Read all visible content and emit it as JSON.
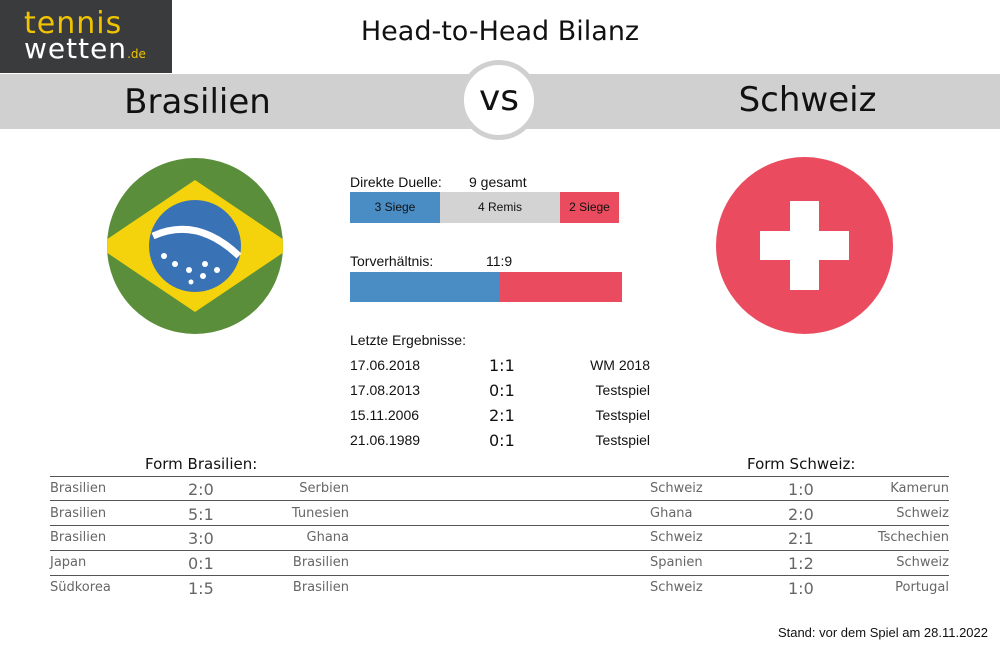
{
  "logo": {
    "line1": "tennis",
    "line2": "wetten",
    "line2_suffix": ".de"
  },
  "title": "Head-to-Head Bilanz",
  "vs": "vs",
  "team_left": "Brasilien",
  "team_right": "Schweiz",
  "colors": {
    "left": "#4a8cc4",
    "draw": "#d3d3d3",
    "right": "#ea4b5e",
    "band": "#d0d0d0",
    "brazil_green": "#5a8e3a",
    "brazil_yellow": "#f4d20c",
    "brazil_blue": "#3a73b5"
  },
  "duels": {
    "label": "Direkte Duelle:",
    "total": "9 gesamt",
    "segments": [
      {
        "label": "3 Siege",
        "count": 3,
        "color": "#4a8cc4",
        "text_color": "#111111"
      },
      {
        "label": "4 Remis",
        "count": 4,
        "color": "#d3d3d3",
        "text_color": "#111111"
      },
      {
        "label": "2 Siege",
        "count": 2,
        "color": "#ea4b5e",
        "text_color": "#111111"
      }
    ]
  },
  "goals": {
    "label": "Torverhältnis:",
    "ratio": "11:9",
    "left_goals": 11,
    "right_goals": 9
  },
  "last_results": {
    "label": "Letzte Ergebnisse:",
    "rows": [
      {
        "date": "17.06.2018",
        "score": "1:1",
        "type": "WM 2018"
      },
      {
        "date": "17.08.2013",
        "score": "0:1",
        "type": "Testspiel"
      },
      {
        "date": "15.11.2006",
        "score": "2:1",
        "type": "Testspiel"
      },
      {
        "date": "21.06.1989",
        "score": "0:1",
        "type": "Testspiel"
      }
    ]
  },
  "form_left": {
    "title": "Form Brasilien:",
    "rows": [
      {
        "home": "Brasilien",
        "score": "2:0",
        "away": "Serbien"
      },
      {
        "home": "Brasilien",
        "score": "5:1",
        "away": "Tunesien"
      },
      {
        "home": "Brasilien",
        "score": "3:0",
        "away": "Ghana"
      },
      {
        "home": "Japan",
        "score": "0:1",
        "away": "Brasilien"
      },
      {
        "home": "Südkorea",
        "score": "1:5",
        "away": "Brasilien"
      }
    ]
  },
  "form_right": {
    "title": "Form Schweiz:",
    "rows": [
      {
        "home": "Schweiz",
        "score": "1:0",
        "away": "Kamerun"
      },
      {
        "home": "Ghana",
        "score": "2:0",
        "away": "Schweiz"
      },
      {
        "home": "Schweiz",
        "score": "2:1",
        "away": "Tschechien"
      },
      {
        "home": "Spanien",
        "score": "1:2",
        "away": "Schweiz"
      },
      {
        "home": "Schweiz",
        "score": "1:0",
        "away": "Portugal"
      }
    ]
  },
  "footnote": "Stand: vor dem Spiel am 28.11.2022",
  "icons": {
    "left_flag": "brazil-flag-icon",
    "right_flag": "switzerland-flag-icon"
  }
}
